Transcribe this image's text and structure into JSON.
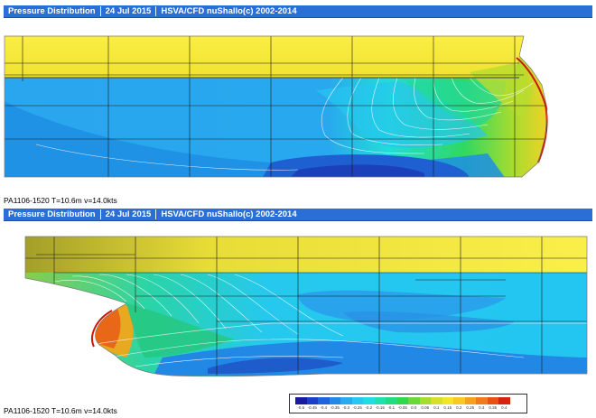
{
  "panels": [
    {
      "title": "Pressure Distribution",
      "date": "24 Jul 2015",
      "software": "HSVA/CFD nuShallo(c) 2002-2014",
      "caption": "PA1106-1520 T=10.6m v=14.0kts"
    },
    {
      "title": "Pressure Distribution",
      "date": "24 Jul 2015",
      "software": "HSVA/CFD nuShallo(c) 2002-2014",
      "caption": "PA1106-1520 T=10.6m v=14.0kts"
    }
  ],
  "legend": {
    "colors": [
      "#1a1aa0",
      "#1c3fc8",
      "#1f64de",
      "#2389e6",
      "#28aaf0",
      "#26c8f2",
      "#22dde0",
      "#20e0b0",
      "#22dc80",
      "#30d850",
      "#6ad83a",
      "#a4dc30",
      "#d6e02a",
      "#f2e428",
      "#f8c824",
      "#f6a020",
      "#f07a1c",
      "#e85016",
      "#d42410"
    ],
    "labels": [
      "-0.5",
      "-0.45",
      "-0.4",
      "-0.35",
      "-0.3",
      "-0.25",
      "-0.2",
      "-0.15",
      "-0.1",
      "-0.05",
      "0.0",
      "0.05",
      "0.1",
      "0.15",
      "0.2",
      "0.25",
      "0.3",
      "0.35",
      "0.4"
    ]
  }
}
